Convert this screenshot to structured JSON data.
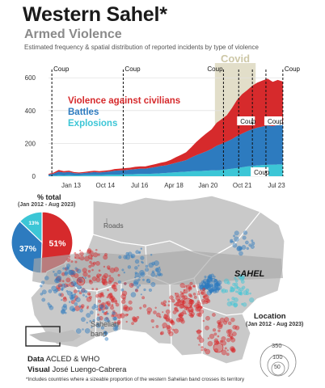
{
  "header": {
    "title": "Western Sahel*",
    "subtitle": "Armed Violence",
    "description": "Estimated frequency & spatial distribution of reported incidents by type of violence"
  },
  "colors": {
    "civilians": "#d62a2c",
    "battles": "#2d7bbf",
    "explosions": "#3cc6d6",
    "covid_band": "#ddd8bf",
    "map_land": "#c9c9c9",
    "sahel_band": "#a9a9a9"
  },
  "chart_data": [
    {
      "type": "area",
      "stacked": true,
      "x_tick_labels": [
        "Jan 13",
        "Oct 14",
        "Jul 16",
        "Apr 18",
        "Jan 20",
        "Oct 21",
        "Jul 23"
      ],
      "y_ticks": [
        0,
        200,
        400,
        600
      ],
      "ylim": [
        0,
        680
      ],
      "x_range": [
        "2012-01",
        "2023-08"
      ],
      "x": [
        "2012-01",
        "2012-04",
        "2012-07",
        "2012-10",
        "2013-01",
        "2013-04",
        "2013-07",
        "2013-10",
        "2014-01",
        "2014-04",
        "2014-07",
        "2014-10",
        "2015-01",
        "2015-04",
        "2015-07",
        "2015-10",
        "2016-01",
        "2016-04",
        "2016-07",
        "2016-10",
        "2017-01",
        "2017-04",
        "2017-07",
        "2017-10",
        "2018-01",
        "2018-04",
        "2018-07",
        "2018-10",
        "2019-01",
        "2019-04",
        "2019-07",
        "2019-10",
        "2020-01",
        "2020-04",
        "2020-07",
        "2020-10",
        "2021-01",
        "2021-04",
        "2021-07",
        "2021-10",
        "2022-01",
        "2022-04",
        "2022-07",
        "2022-10",
        "2023-01",
        "2023-04",
        "2023-07"
      ],
      "series": [
        {
          "name": "Explosions",
          "color": "#3cc6d6",
          "values": [
            2,
            4,
            6,
            5,
            6,
            5,
            5,
            6,
            6,
            7,
            7,
            8,
            9,
            10,
            10,
            11,
            12,
            13,
            14,
            14,
            15,
            16,
            18,
            20,
            22,
            24,
            26,
            28,
            30,
            32,
            32,
            34,
            36,
            36,
            38,
            42,
            46,
            50,
            55,
            60,
            62,
            66,
            68,
            70,
            70,
            72,
            72
          ]
        },
        {
          "name": "Battles",
          "color": "#2d7bbf",
          "values": [
            8,
            12,
            22,
            18,
            20,
            14,
            12,
            14,
            16,
            18,
            16,
            18,
            20,
            24,
            26,
            26,
            28,
            30,
            32,
            32,
            36,
            40,
            44,
            46,
            52,
            58,
            64,
            70,
            84,
            96,
            108,
            118,
            130,
            150,
            160,
            170,
            180,
            195,
            205,
            215,
            225,
            230,
            235,
            240,
            235,
            240,
            245
          ]
        },
        {
          "name": "Violence against civilians",
          "color": "#d62a2c",
          "values": [
            4,
            6,
            10,
            8,
            8,
            6,
            6,
            6,
            8,
            8,
            8,
            8,
            8,
            10,
            10,
            12,
            12,
            14,
            14,
            14,
            16,
            18,
            20,
            22,
            26,
            34,
            40,
            48,
            62,
            80,
            96,
            110,
            120,
            140,
            150,
            160,
            190,
            220,
            240,
            250,
            265,
            275,
            280,
            285,
            270,
            275,
            260
          ]
        }
      ],
      "legend": [
        "Violence against civilians",
        "Battles",
        "Explosions"
      ],
      "legend_placement": "top-left",
      "annotations": [
        {
          "label": "Coup",
          "x": "2012-03"
        },
        {
          "label": "Coup",
          "x": "2015-09"
        },
        {
          "label": "Coup",
          "x": "2020-08"
        },
        {
          "label": "Coup",
          "x": "2021-05"
        },
        {
          "label": "Coup",
          "x": "2022-01"
        },
        {
          "label": "Coup",
          "x": "2022-09"
        },
        {
          "label": "Coup",
          "x": "2023-07"
        }
      ],
      "shaded_period": {
        "label": "Covid",
        "from": "2020-03",
        "to": "2022-03"
      }
    },
    {
      "type": "pie",
      "title": "% total",
      "subtitle": "(Jan 2012 - Aug 2023)",
      "slices": [
        {
          "name": "Violence against civilians",
          "value": 51,
          "label": "51%",
          "color": "#d62a2c"
        },
        {
          "name": "Battles",
          "value": 37,
          "label": "37%",
          "color": "#2d7bbf"
        },
        {
          "name": "Explosions",
          "value": 13,
          "label": "13%",
          "color": "#3cc6d6"
        }
      ]
    }
  ],
  "map": {
    "roads_label": "Roads",
    "sahel_label": "SAHEL",
    "inset_label": "Sahelian\nband",
    "inset_label_line1": "Sahelian",
    "inset_label_line2": "band",
    "location_title": "Location",
    "location_range": "(Jan 2012 - Aug 2023)",
    "size_legend": [
      "350",
      "100",
      "50"
    ]
  },
  "credits": {
    "data_label": "Data",
    "data_value": "ACLED & WHO",
    "visual_label": "Visual",
    "visual_value": "José Luengo-Cabrera",
    "footnote": "*Includes countries where a sizeable proportion of the western Sahelian band crosses its territory"
  }
}
